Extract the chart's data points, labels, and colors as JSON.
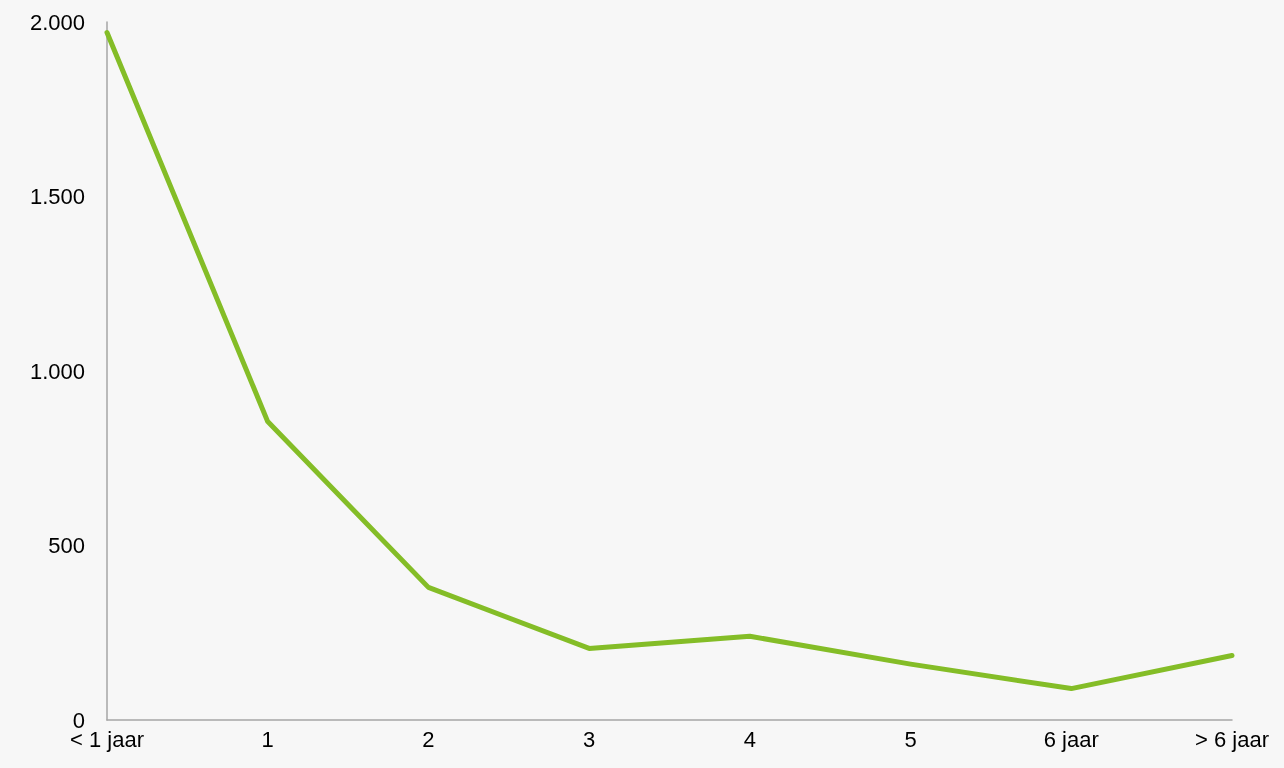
{
  "chart_data": {
    "type": "line",
    "categories": [
      "< 1 jaar",
      "1",
      "2",
      "3",
      "4",
      "5",
      "6 jaar",
      "> 6 jaar"
    ],
    "series": [
      {
        "color": "#84bd27",
        "values": [
          1970,
          855,
          380,
          205,
          240,
          160,
          90,
          185
        ]
      }
    ],
    "ylim": [
      0,
      2000
    ],
    "yticks": [
      0,
      500,
      {
        "value": 1000,
        "label": "1.000"
      },
      {
        "value": 1500,
        "label": "1.500"
      },
      {
        "value": 2000,
        "label": "2.000"
      }
    ],
    "grid": false,
    "marker": "none",
    "line_style": "solid"
  }
}
